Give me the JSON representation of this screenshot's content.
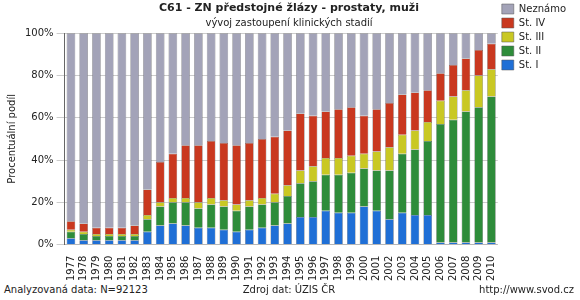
{
  "chart_data": {
    "type": "bar",
    "title": "C61 - ZN předstojné žlázy - prostaty, muži",
    "subtitle": "vývoj zastoupení klinických stadií",
    "y_label": "Procentuální podíl",
    "annotations": [
      "Analyzovaná data: N=92123",
      "Zdroj dat: ÚZIS ČR",
      "http://www.svod.cz"
    ],
    "categories": [
      "1977",
      "1978",
      "1979",
      "1980",
      "1981",
      "1982",
      "1983",
      "1984",
      "1985",
      "1986",
      "1987",
      "1988",
      "1989",
      "1990",
      "1991",
      "1992",
      "1993",
      "1994",
      "1995",
      "1996",
      "1997",
      "1998",
      "1999",
      "2000",
      "2001",
      "2002",
      "2003",
      "2004",
      "2005",
      "2006",
      "2007",
      "2008",
      "2009",
      "2010"
    ],
    "series": [
      {
        "name": "St. I",
        "color": "#1f6fd6",
        "values": [
          3,
          2,
          2,
          2,
          2,
          2,
          6,
          9,
          10,
          9,
          8,
          8,
          7,
          6,
          7,
          8,
          9,
          10,
          13,
          13,
          16,
          15,
          15,
          18,
          16,
          12,
          15,
          14,
          14,
          1,
          1,
          1,
          1,
          1
        ]
      },
      {
        "name": "St. II",
        "color": "#2e8c3a",
        "values": [
          3,
          3,
          2,
          2,
          2,
          2,
          6,
          9,
          10,
          11,
          9,
          11,
          11,
          10,
          11,
          11,
          11,
          13,
          16,
          17,
          17,
          18,
          19,
          18,
          19,
          23,
          28,
          31,
          35,
          56,
          58,
          62,
          64,
          69
        ]
      },
      {
        "name": "St. III",
        "color": "#c9c823",
        "values": [
          1,
          1,
          1,
          1,
          1,
          1,
          2,
          2,
          2,
          2,
          3,
          3,
          3,
          3,
          3,
          3,
          4,
          5,
          6,
          7,
          8,
          8,
          8,
          7,
          9,
          11,
          9,
          9,
          9,
          11,
          11,
          10,
          15,
          13
        ]
      },
      {
        "name": "St. IV",
        "color": "#c9381f",
        "values": [
          4,
          4,
          3,
          3,
          3,
          4,
          12,
          19,
          21,
          25,
          27,
          27,
          27,
          28,
          27,
          28,
          27,
          26,
          27,
          24,
          22,
          23,
          23,
          18,
          20,
          21,
          19,
          18,
          15,
          13,
          15,
          15,
          12,
          12
        ]
      },
      {
        "name": "Neznámo",
        "color": "#a3a3b8",
        "values": [
          89,
          90,
          92,
          92,
          92,
          91,
          74,
          61,
          57,
          53,
          53,
          51,
          52,
          53,
          52,
          50,
          49,
          46,
          38,
          39,
          37,
          36,
          35,
          39,
          36,
          33,
          29,
          28,
          27,
          19,
          15,
          12,
          8,
          5
        ]
      }
    ],
    "ylim": [
      0,
      100
    ],
    "yticks": [
      {
        "value": 0,
        "label": "0%"
      },
      {
        "value": 20,
        "label": "20%"
      },
      {
        "value": 40,
        "label": "40%"
      },
      {
        "value": 60,
        "label": "60%"
      },
      {
        "value": 80,
        "label": "80%"
      },
      {
        "value": 100,
        "label": "100%"
      }
    ],
    "stacked": true,
    "grid": true,
    "legend": "right"
  }
}
